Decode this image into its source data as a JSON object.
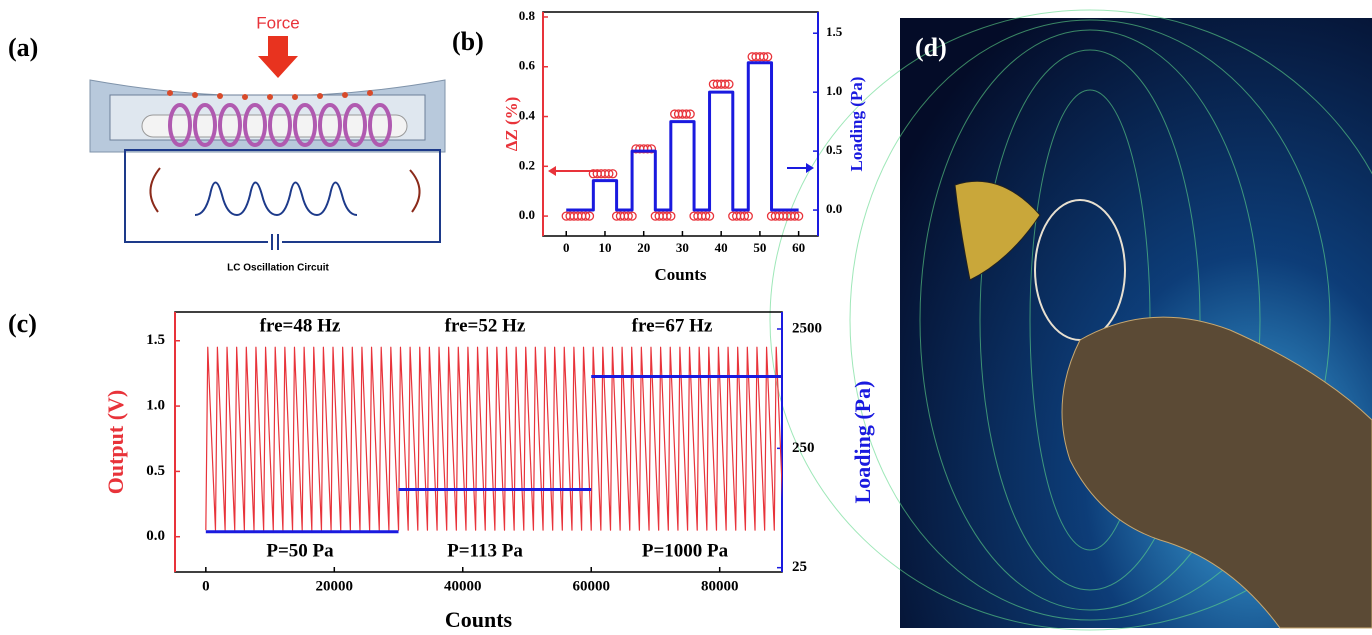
{
  "diagram": {
    "label": "(a)",
    "force": "Force",
    "circuit": "LC Oscillation Circuit"
  },
  "image": {
    "label": "(d)"
  },
  "chart_data": [
    {
      "type": "line",
      "label": "(b)",
      "xlabel": "Counts",
      "ylabel": "ΔZ (%)",
      "y2label": "Loading (Pa)",
      "xlim": [
        -6,
        65
      ],
      "xticks": [
        0,
        10,
        20,
        30,
        40,
        50,
        60
      ],
      "ylim": [
        -0.08,
        0.82
      ],
      "yticks": [
        {
          "value": 0,
          "label": "0.0"
        },
        0.2,
        0.4,
        0.6,
        0.8
      ],
      "y2lim": [
        -0.22,
        1.68
      ],
      "y2ticks": [
        {
          "value": 0,
          "label": "0.0"
        },
        {
          "value": 0.5,
          "label": "0.5"
        },
        {
          "value": 1,
          "label": "1.0"
        },
        {
          "value": 1.5,
          "label": "1.5"
        }
      ],
      "ycolor": "#e8333a",
      "y2color": "#1a1adf",
      "series": [
        {
          "type": "scatter",
          "color": "#e8333a",
          "x": [
            0,
            1,
            2,
            3,
            4,
            5,
            6,
            7,
            8,
            9,
            10,
            11,
            12,
            13,
            14,
            15,
            16,
            17,
            18,
            19,
            20,
            21,
            22,
            23,
            24,
            25,
            26,
            27,
            28,
            29,
            30,
            31,
            32,
            33,
            34,
            35,
            36,
            37,
            38,
            39,
            40,
            41,
            42,
            43,
            44,
            45,
            46,
            47,
            48,
            49,
            50,
            51,
            52,
            53,
            54,
            55,
            56,
            57,
            58,
            59,
            60
          ],
          "values": [
            0,
            0,
            0,
            0,
            0,
            0,
            0,
            0.17,
            0.17,
            0.17,
            0.17,
            0.17,
            0.17,
            0,
            0,
            0,
            0,
            0,
            0.27,
            0.27,
            0.27,
            0.27,
            0.27,
            0,
            0,
            0,
            0,
            0,
            0.41,
            0.41,
            0.41,
            0.41,
            0.41,
            0,
            0,
            0,
            0,
            0,
            0.53,
            0.53,
            0.53,
            0.53,
            0.53,
            0,
            0,
            0,
            0,
            0,
            0.64,
            0.64,
            0.64,
            0.64,
            0.64,
            0,
            0,
            0,
            0,
            0,
            0,
            0,
            0
          ]
        },
        {
          "type": "line",
          "color": "#1a1adf",
          "axis": "y2",
          "x": [
            0,
            7,
            7,
            13,
            13,
            17,
            17,
            23,
            23,
            27,
            27,
            33,
            33,
            37,
            37,
            43,
            43,
            47,
            47,
            53,
            53,
            60
          ],
          "values": [
            0,
            0,
            0.25,
            0.25,
            0,
            0,
            0.5,
            0.5,
            0,
            0,
            0.75,
            0.75,
            0,
            0,
            1.0,
            1.0,
            0,
            0,
            1.25,
            1.25,
            0,
            0
          ]
        }
      ]
    },
    {
      "type": "line",
      "label": "(c)",
      "xlabel": "Counts",
      "ylabel": "Output (V)",
      "y2label": "Loading (Pa)",
      "xlim": [
        -4800,
        89700
      ],
      "xticks": [
        0,
        20000,
        40000,
        60000,
        80000
      ],
      "ylim": [
        -0.27,
        1.72
      ],
      "yticks": [
        {
          "value": 0,
          "label": "0.0"
        },
        0.5,
        {
          "value": 1,
          "label": "1.0"
        },
        1.5
      ],
      "y2lim": [
        23,
        3470
      ],
      "y2log": true,
      "y2ticks": [
        25,
        250,
        2500
      ],
      "ycolor": "#e8333a",
      "y2color": "#1a1adf",
      "annotations": [
        "fre=48 Hz",
        "fre=52 Hz",
        "fre=67 Hz",
        "P=50 Pa",
        "P=113 Pa",
        "P=1000 Pa"
      ],
      "series": [
        {
          "type": "line",
          "color": "#e8333a",
          "x": [
            0,
            300,
            1500,
            1800,
            3000,
            3300,
            4500,
            4800,
            6000,
            6300,
            7500,
            7800,
            9000,
            9300,
            10500,
            10800,
            12000,
            12300,
            13500,
            13800,
            15000,
            15300,
            16500,
            16800,
            18000,
            18300,
            19500,
            19800,
            21000,
            21300,
            22500,
            22800,
            24000,
            24300,
            25500,
            25800,
            27000,
            27300,
            28500,
            28800,
            30000,
            30300,
            31500,
            31800,
            33000,
            33300,
            34500,
            34800,
            36000,
            36300,
            37500,
            37800,
            39000,
            39300,
            40500,
            40800,
            42000,
            42300,
            43500,
            43800,
            45000,
            45300,
            46500,
            46800,
            48000,
            48300,
            49500,
            49800,
            51000,
            51300,
            52500,
            52800,
            54000,
            54300,
            55500,
            55800,
            57000,
            57300,
            58500,
            58800,
            60000,
            60300,
            61500,
            61800,
            63000,
            63300,
            64500,
            64800,
            66000,
            66300,
            67500,
            67800,
            69000,
            69300,
            70500,
            70800,
            72000,
            72300,
            73500,
            73800,
            75000,
            75300,
            76500,
            76800,
            78000,
            78300,
            79500,
            79800,
            81000,
            81300,
            82500,
            82800,
            84000,
            84300,
            85500,
            85800,
            87000,
            87300,
            88500,
            88800,
            90000
          ],
          "values": [
            0.05,
            1.45,
            0.05,
            1.45,
            0.05,
            1.45,
            0.05,
            1.45,
            0.05,
            1.45,
            0.05,
            1.45,
            0.05,
            1.45,
            0.05,
            1.45,
            0.05,
            1.45,
            0.05,
            1.45,
            0.05,
            1.45,
            0.05,
            1.45,
            0.05,
            1.45,
            0.05,
            1.45,
            0.05,
            1.45,
            0.05,
            1.45,
            0.05,
            1.45,
            0.05,
            1.45,
            0.05,
            1.45,
            0.05,
            1.45,
            0.05,
            1.45,
            0.05,
            1.45,
            0.05,
            1.45,
            0.05,
            1.45,
            0.05,
            1.45,
            0.05,
            1.45,
            0.05,
            1.45,
            0.05,
            1.45,
            0.05,
            1.45,
            0.05,
            1.45,
            0.05,
            1.45,
            0.05,
            1.45,
            0.05,
            1.45,
            0.05,
            1.45,
            0.05,
            1.45,
            0.05,
            1.45,
            0.05,
            1.45,
            0.05,
            1.45,
            0.05,
            1.45,
            0.05,
            1.45,
            0.05,
            1.45,
            0.05,
            1.45,
            0.05,
            1.45,
            0.05,
            1.45,
            0.05,
            1.45,
            0.05,
            1.45,
            0.05,
            1.45,
            0.05,
            1.45,
            0.05,
            1.45,
            0.05,
            1.45,
            0.05,
            1.45,
            0.05,
            1.45,
            0.05,
            1.45,
            0.05,
            1.45,
            0.05,
            1.45,
            0.05,
            1.45,
            0.05,
            1.45,
            0.05,
            1.45,
            0.05,
            1.45,
            0.05,
            1.45,
            0.05
          ]
        },
        {
          "type": "line",
          "color": "#1a1adf",
          "axis": "y2",
          "x": [
            0,
            30000,
            null,
            30000,
            60000,
            null,
            60000,
            90000
          ],
          "values": [
            50,
            50,
            null,
            113,
            113,
            null,
            1000,
            1000
          ]
        }
      ]
    }
  ]
}
